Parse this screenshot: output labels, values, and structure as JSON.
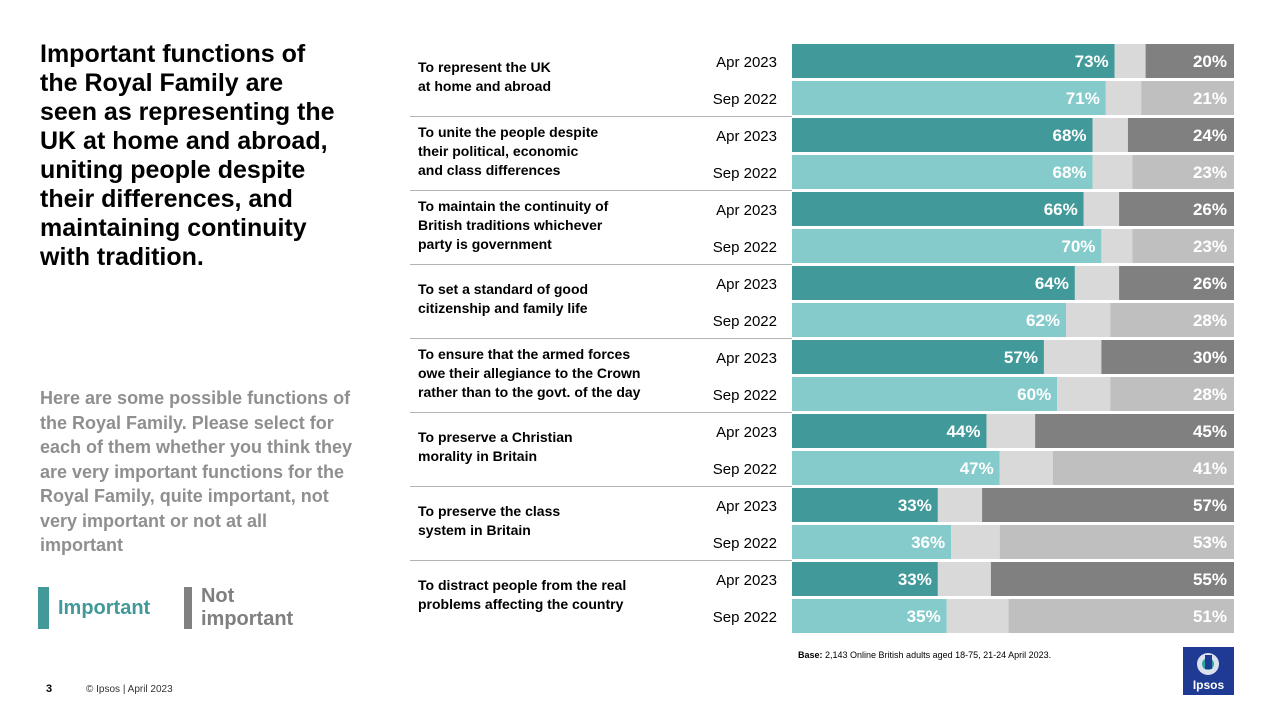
{
  "title": "Important functions of the Royal Family are seen as representing the UK at home and abroad, uniting people despite their differences, and maintaining continuity with tradition.",
  "question": "Here are some possible functions of the Royal Family. Please select for each of them whether you think they are very important functions for the Royal Family, quite important, not very important or not at all important",
  "legend": {
    "important": "Important",
    "not_important": "Not important"
  },
  "colors": {
    "important_apr": "#41999a",
    "important_sep": "#85cbcb",
    "middle": "#d9d9d9",
    "not_important_apr": "#808080",
    "not_important_sep": "#bfbfbf",
    "legend_important_text": "#41999a",
    "legend_not_important_text": "#7f7f7f"
  },
  "footer": {
    "page_number": "3",
    "copyright": "© Ipsos | April 2023",
    "base_label": "Base:",
    "base_text": " 2,143 Online British adults aged 18-75, 21-24 April 2023.",
    "logo_text": "Ipsos"
  },
  "chart_data": {
    "type": "bar",
    "orientation": "horizontal-stacked",
    "waves": [
      "Apr 2023",
      "Sep 2022"
    ],
    "xlim": [
      0,
      100
    ],
    "value_suffix": "%",
    "categories": [
      {
        "label": "To represent the UK\nat home and abroad",
        "important": [
          73,
          71
        ],
        "not_important": [
          20,
          21
        ]
      },
      {
        "label": "To unite the people despite\ntheir political, economic\nand class differences",
        "important": [
          68,
          68
        ],
        "not_important": [
          24,
          23
        ]
      },
      {
        "label": "To maintain the continuity of\nBritish traditions whichever\nparty is government",
        "important": [
          66,
          70
        ],
        "not_important": [
          26,
          23
        ]
      },
      {
        "label": "To set a standard of good\ncitizenship and family life",
        "important": [
          64,
          62
        ],
        "not_important": [
          26,
          28
        ]
      },
      {
        "label": "To ensure that the armed forces\nowe their allegiance to the Crown\nrather than to the govt. of the day",
        "important": [
          57,
          60
        ],
        "not_important": [
          30,
          28
        ]
      },
      {
        "label": "To preserve a Christian\nmorality in Britain",
        "important": [
          44,
          47
        ],
        "not_important": [
          45,
          41
        ]
      },
      {
        "label": "To preserve the class\nsystem in Britain",
        "important": [
          33,
          36
        ],
        "not_important": [
          57,
          53
        ]
      },
      {
        "label": "To distract people from the real\nproblems affecting the country",
        "important": [
          33,
          35
        ],
        "not_important": [
          55,
          51
        ]
      }
    ]
  }
}
